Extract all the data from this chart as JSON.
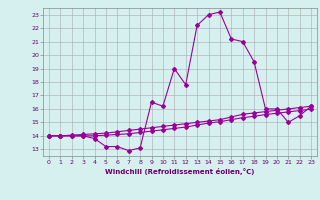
{
  "xlabel": "Windchill (Refroidissement éolien,°C)",
  "background_color": "#d6f0f0",
  "line_color": "#990099",
  "xlim": [
    -0.5,
    23.5
  ],
  "ylim": [
    12.5,
    23.5
  ],
  "xticks": [
    0,
    1,
    2,
    3,
    4,
    5,
    6,
    7,
    8,
    9,
    10,
    11,
    12,
    13,
    14,
    15,
    16,
    17,
    18,
    19,
    20,
    21,
    22,
    23
  ],
  "yticks": [
    13,
    14,
    15,
    16,
    17,
    18,
    19,
    20,
    21,
    22,
    23
  ],
  "line1_x": [
    0,
    1,
    2,
    3,
    4,
    5,
    6,
    7,
    8,
    9,
    10,
    11,
    12,
    13,
    14,
    15,
    16,
    17,
    18,
    19,
    20,
    21,
    22,
    23
  ],
  "line1_y": [
    14.0,
    14.0,
    14.0,
    14.0,
    13.8,
    13.2,
    13.2,
    12.9,
    13.1,
    16.5,
    16.2,
    19.0,
    17.8,
    22.2,
    23.0,
    23.2,
    21.2,
    21.0,
    19.5,
    16.0,
    16.0,
    15.0,
    15.5,
    16.2
  ],
  "line2_x": [
    0,
    1,
    2,
    3,
    4,
    5,
    6,
    7,
    8,
    9,
    10,
    11,
    12,
    13,
    14,
    15,
    16,
    17,
    18,
    19,
    20,
    21,
    22,
    23
  ],
  "line2_y": [
    14.0,
    14.0,
    14.05,
    14.1,
    14.15,
    14.2,
    14.3,
    14.4,
    14.5,
    14.6,
    14.7,
    14.8,
    14.9,
    15.0,
    15.1,
    15.2,
    15.4,
    15.6,
    15.7,
    15.8,
    15.9,
    16.0,
    16.1,
    16.2
  ],
  "line3_x": [
    0,
    1,
    2,
    3,
    4,
    5,
    6,
    7,
    8,
    9,
    10,
    11,
    12,
    13,
    14,
    15,
    16,
    17,
    18,
    19,
    20,
    21,
    22,
    23
  ],
  "line3_y": [
    14.0,
    14.0,
    14.0,
    14.0,
    14.0,
    14.05,
    14.1,
    14.15,
    14.25,
    14.35,
    14.45,
    14.55,
    14.65,
    14.8,
    14.95,
    15.05,
    15.2,
    15.35,
    15.45,
    15.58,
    15.68,
    15.78,
    15.88,
    15.98
  ]
}
